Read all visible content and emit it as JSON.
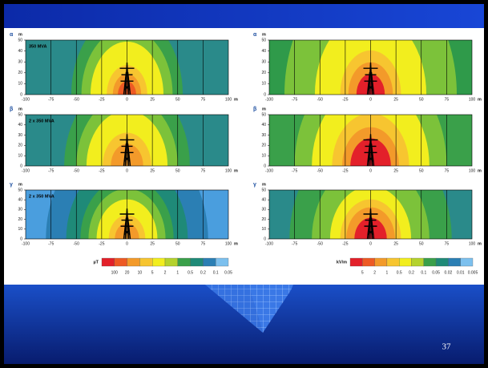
{
  "panels": [
    {
      "label": "α",
      "annotation": "350 MVA"
    },
    {
      "label": "α"
    },
    {
      "label": "β",
      "annotation": "2 x 350 MVA"
    },
    {
      "label": "β"
    },
    {
      "label": "γ",
      "annotation": "2 x 350 MVA"
    },
    {
      "label": "γ"
    }
  ],
  "axes": {
    "y_unit": "m",
    "x_unit": "m",
    "y_ticks": [
      "0",
      "10",
      "20",
      "30",
      "40",
      "50"
    ],
    "x_ticks": [
      "-100",
      "-75",
      "-50",
      "-25",
      "0",
      "25",
      "50",
      "75",
      "100"
    ]
  },
  "legends": [
    {
      "unit": "µT",
      "labels": [
        "100",
        "20",
        "10",
        "5",
        "2",
        "1",
        "0.5",
        "0.2",
        "0.1",
        "0.05"
      ]
    },
    {
      "unit": "kV/m",
      "labels": [
        "5",
        "2",
        "1",
        "0.5",
        "0.2",
        "0.1",
        "0.05",
        "0.02",
        "0.01",
        "0.005"
      ]
    }
  ],
  "page_number": "37"
}
